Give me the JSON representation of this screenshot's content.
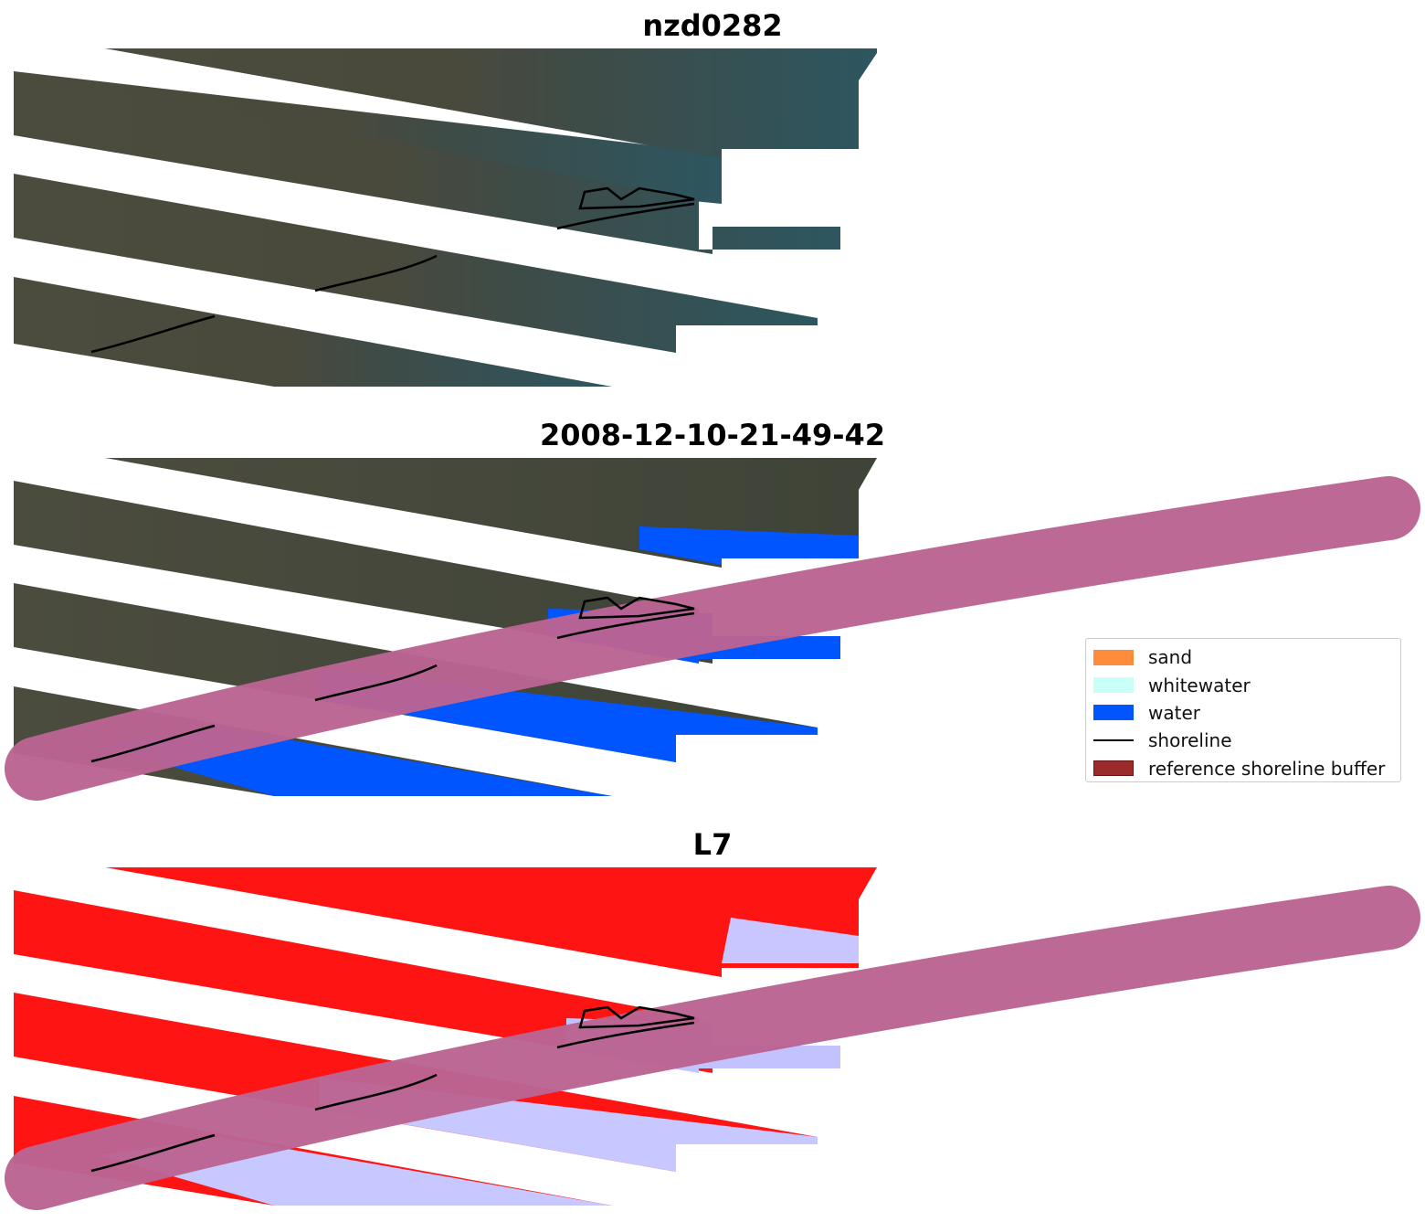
{
  "panels": [
    {
      "title": "nzd0282",
      "kind": "rgb"
    },
    {
      "title": "2008-12-10-21-49-42",
      "kind": "classified"
    },
    {
      "title": "L7",
      "kind": "index"
    }
  ],
  "legend": {
    "items": [
      {
        "label": "sand",
        "color": "#ff8c3a",
        "type": "patch"
      },
      {
        "label": "whitewater",
        "color": "#c8fff8",
        "type": "patch"
      },
      {
        "label": "water",
        "color": "#0055ff",
        "type": "patch"
      },
      {
        "label": "shoreline",
        "color": "#000000",
        "type": "line"
      },
      {
        "label": "reference shoreline buffer",
        "color": "#9b2a2a",
        "type": "patch"
      }
    ]
  },
  "colors": {
    "land": "#4d4e3e",
    "land_dark": "#3d4236",
    "sea": "#2f5a63",
    "water": "#0055ff",
    "buffer": "#bb6493",
    "index_red": "#ff1414",
    "index_blue": "#b4b8ff"
  }
}
